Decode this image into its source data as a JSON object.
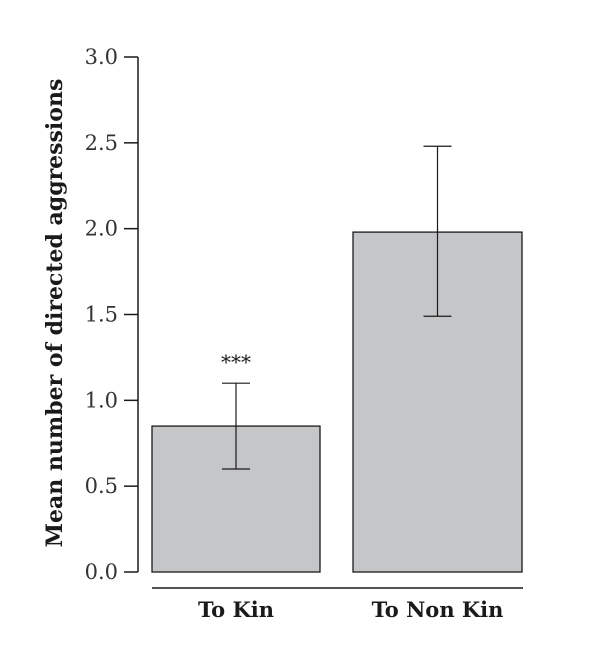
{
  "chart_data": {
    "type": "bar",
    "categories": [
      "To Kin",
      "To Non Kin"
    ],
    "values": [
      0.85,
      1.98
    ],
    "error": [
      {
        "low": 0.6,
        "high": 1.1
      },
      {
        "low": 1.49,
        "high": 2.48
      }
    ],
    "annotations": [
      {
        "category": "To Kin",
        "text": "***"
      }
    ],
    "ylabel": "Mean number of directed aggressions",
    "xlabel": "",
    "ylim": [
      0,
      3.0
    ],
    "yticks": [
      "0.0",
      "0.5",
      "1.0",
      "1.5",
      "2.0",
      "2.5",
      "3.0"
    ],
    "grid": false,
    "legend": "none",
    "colors": {
      "bar_fill": "#c5c6c8",
      "bar_stroke": "#1a1a1a",
      "axis": "#1a1a1a"
    }
  }
}
